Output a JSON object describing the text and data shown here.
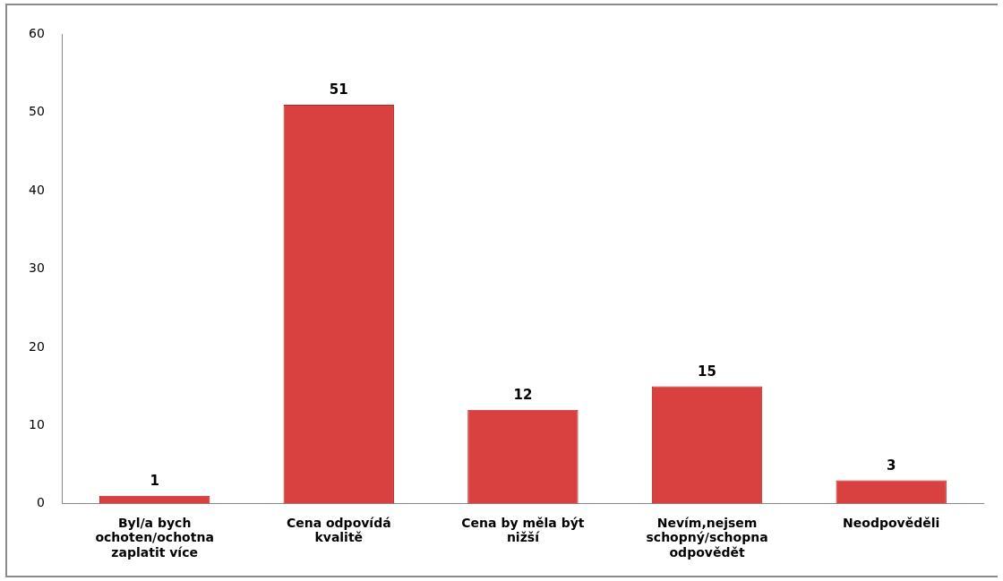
{
  "chart_data": {
    "type": "bar",
    "categories": [
      "Byl/a bych ochoten/ochotna zaplatit více",
      "Cena odpovídá kvalitě",
      "Cena by měla být nižší",
      "Nevím,nejsem schopný/schopna odpovědět",
      "Neodpověděli"
    ],
    "values": [
      1,
      51,
      12,
      15,
      3
    ],
    "color": "#d94040",
    "ylim": [
      0,
      60
    ],
    "yticks": [
      0,
      10,
      20,
      30,
      40,
      50,
      60
    ],
    "grid": false,
    "legend": false,
    "data_labels": true
  }
}
